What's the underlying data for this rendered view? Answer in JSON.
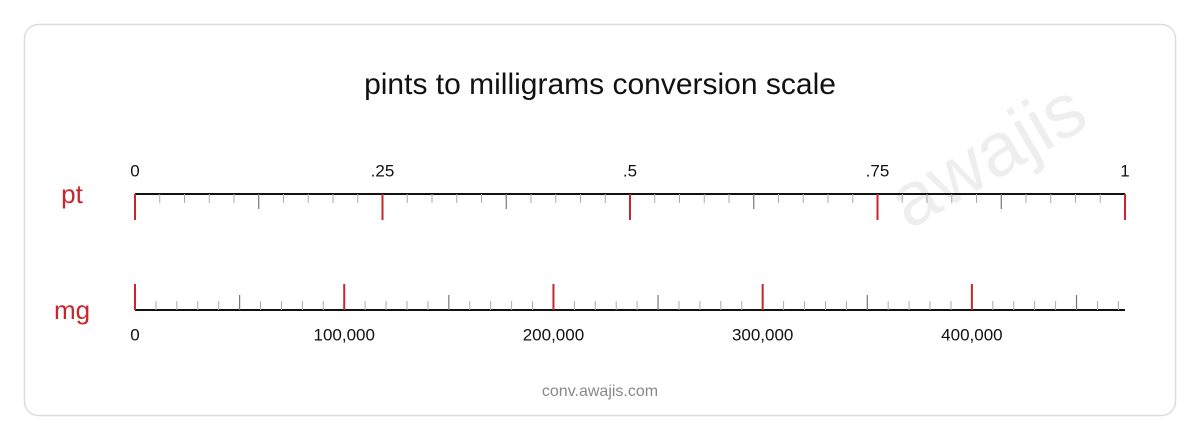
{
  "chart_data": {
    "type": "conversion-scale",
    "title": "pints to milligrams conversion scale",
    "watermark": "awajis",
    "source": "conv.awajis.com",
    "axes": [
      {
        "label": "pt",
        "side": "top",
        "lim": [
          0,
          1
        ],
        "ticks": [
          0,
          {
            "value": 0.25,
            "label": ".25"
          },
          {
            "value": 0.5,
            "label": ".5"
          },
          {
            "value": 0.75,
            "label": ".75"
          },
          1
        ],
        "mid_ticks": [
          0.125,
          0.375,
          0.625,
          0.875
        ],
        "minor_ticks": [
          0.025,
          0.05,
          0.075,
          0.1,
          0.15,
          0.175,
          0.2,
          0.225,
          0.275,
          0.3,
          0.325,
          0.35,
          0.4,
          0.425,
          0.45,
          0.475,
          0.525,
          0.55,
          0.575,
          0.6,
          0.65,
          0.675,
          0.7,
          0.725,
          0.775,
          0.8,
          0.825,
          0.85,
          0.9,
          0.925,
          0.95,
          0.975
        ]
      },
      {
        "label": "mg",
        "side": "bottom",
        "lim": [
          0,
          473176.473
        ],
        "ticks": [
          0,
          {
            "value": 100000,
            "label": "100,000"
          },
          {
            "value": 200000,
            "label": "200,000"
          },
          {
            "value": 300000,
            "label": "300,000"
          },
          {
            "value": 400000,
            "label": "400,000"
          }
        ],
        "mid_ticks": [
          50000,
          150000,
          250000,
          350000,
          450000
        ],
        "minor_ticks": [
          10000,
          20000,
          30000,
          40000,
          60000,
          70000,
          80000,
          90000,
          110000,
          120000,
          130000,
          140000,
          160000,
          170000,
          180000,
          190000,
          210000,
          220000,
          230000,
          240000,
          260000,
          270000,
          280000,
          290000,
          310000,
          320000,
          330000,
          340000,
          360000,
          370000,
          380000,
          390000,
          410000,
          420000,
          430000,
          440000,
          460000,
          470000
        ]
      }
    ],
    "major_color": "#c8262c",
    "label_color": "#c8262c"
  }
}
